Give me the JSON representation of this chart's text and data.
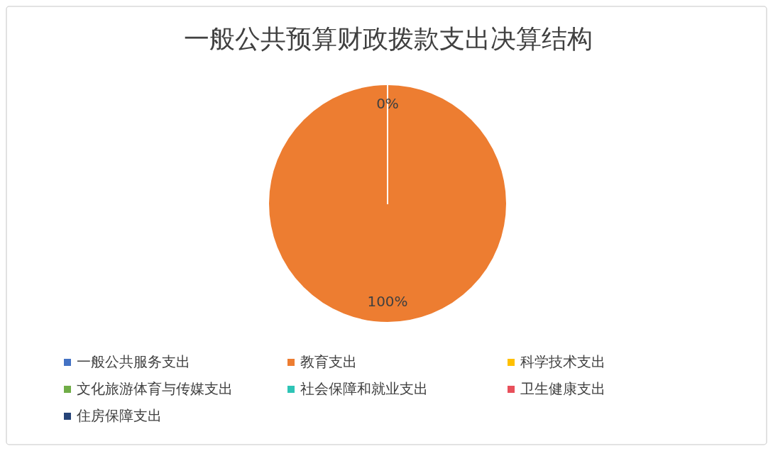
{
  "chart_data": {
    "type": "pie",
    "title": "一般公共预算财政拨款支出决算结构",
    "categories": [
      "一般公共服务支出",
      "教育支出",
      "科学技术支出",
      "文化旅游体育与传媒支出",
      "社会保障和就业支出",
      "卫生健康支出",
      "住房保障支出"
    ],
    "values": [
      0,
      100,
      0,
      0,
      0,
      0,
      0
    ],
    "colors": [
      "#4472c4",
      "#ed7d31",
      "#ffc000",
      "#70ad47",
      "#2ec4b6",
      "#e8505b",
      "#264478"
    ],
    "value_labels": [
      "0%",
      "100%",
      null,
      null,
      null,
      null,
      null
    ],
    "legend": "bottom"
  }
}
